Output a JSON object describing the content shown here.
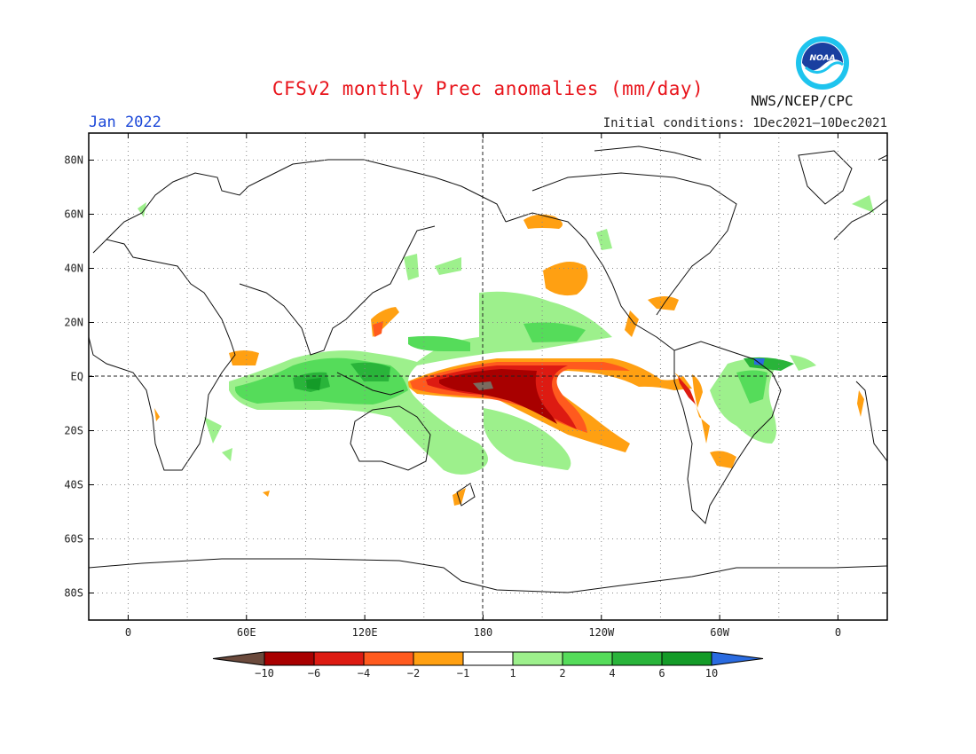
{
  "header": {
    "title": "CFSv2 monthly Prec anomalies (mm/day)",
    "month": "Jan 2022",
    "initial_conditions": "Initial conditions: 1Dec2021—10Dec2021",
    "agency": "NWS/NCEP/CPC",
    "logo_text": "NOAA"
  },
  "axes": {
    "lat_labels": [
      "80N",
      "60N",
      "40N",
      "20N",
      "EQ",
      "20S",
      "40S",
      "60S",
      "80S"
    ],
    "lat_values": [
      80,
      60,
      40,
      20,
      0,
      -20,
      -40,
      -60,
      -80
    ],
    "lon_labels": [
      "0",
      "60E",
      "120E",
      "180",
      "120W",
      "60W",
      "0"
    ],
    "lon_values": [
      0,
      60,
      120,
      180,
      240,
      300,
      360
    ],
    "lat_range": [
      -90,
      90
    ],
    "lon_range": [
      -20,
      385
    ]
  },
  "colorbar": {
    "labels": [
      "-10",
      "-6",
      "-4",
      "-2",
      "-1",
      "1",
      "2",
      "4",
      "6",
      "10"
    ],
    "colors": [
      "#6b4a3c",
      "#a80000",
      "#dd1b12",
      "#ff5a1e",
      "#ffa012",
      "#ffffff",
      "#9df08c",
      "#55dc5a",
      "#29b43a",
      "#149b28",
      "#2a6be0"
    ]
  },
  "palette": {
    "dry_extreme": "#7a6a5f",
    "dry_strong": "#a80000",
    "dry_mid": "#dd1b12",
    "dry_weak": "#ff5a1e",
    "dry_light": "#ffa012",
    "wet_light": "#9df08c",
    "wet_mid": "#55dc5a",
    "wet_strong": "#29b43a",
    "wet_extreme": "#149b28",
    "wet_max": "#2a6be0"
  }
}
